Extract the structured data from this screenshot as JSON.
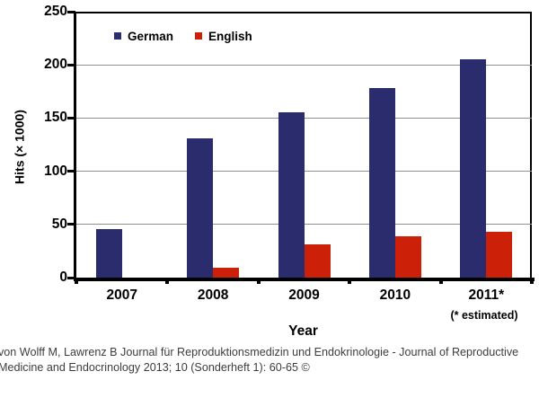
{
  "chart_data": {
    "type": "bar",
    "title": "",
    "categories": [
      "2007",
      "2008",
      "2009",
      "2010",
      "2011*"
    ],
    "series": [
      {
        "name": "German",
        "color": "#2b2c6e",
        "values": [
          46,
          131,
          155,
          178,
          205
        ]
      },
      {
        "name": "English",
        "color": "#cc2008",
        "values": [
          0,
          9,
          31,
          39,
          43
        ]
      }
    ],
    "xlabel": "Year",
    "ylabel": "Hits (× 1000)",
    "ylim": [
      0,
      250
    ],
    "yticks": [
      0,
      50,
      100,
      150,
      200,
      250
    ],
    "grid": "horizontal",
    "grid_color": "#8f8f8f",
    "axis_color": "#000000",
    "legend_position": "top-left-inside",
    "footnote_marker": "(* estimated)"
  },
  "citation": {
    "line1": "von Wolff M, Lawrenz B Journal für Reproduktionsmedizin und Endokrinologie - Journal of Reproductive",
    "line2": "Medicine and Endocrinology 2013; 10 (Sonderheft 1): 60-65 ©"
  }
}
